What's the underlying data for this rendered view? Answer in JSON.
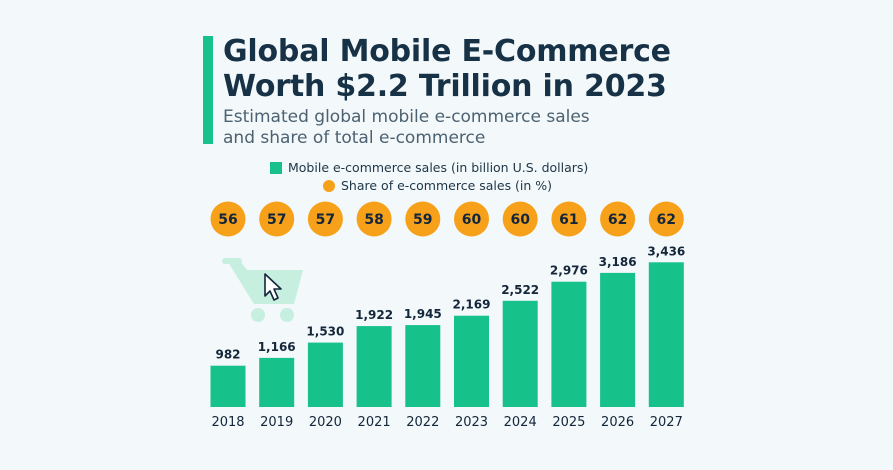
{
  "header": {
    "title_line_1": "Global Mobile E-Commerce",
    "title_line_2": "Worth $2.2 Trillion in 2023",
    "subtitle_line_1": "Estimated global mobile e-commerce sales",
    "subtitle_line_2": "and share of total e-commerce"
  },
  "legend": {
    "sales_label": "Mobile e-commerce sales (in billion U.S. dollars)",
    "share_label": "Share of e-commerce sales (in %)"
  },
  "colors": {
    "background": "#f3f8fa",
    "bar": "#16c18a",
    "share_circle": "#f7a11a",
    "cart_icon": "#c6efe0",
    "title": "#173146"
  },
  "decoration": {
    "icon": "shopping-cart-with-cursor-icon"
  },
  "chart_data": {
    "type": "bar",
    "categories": [
      "2018",
      "2019",
      "2020",
      "2021",
      "2022",
      "2023",
      "2024",
      "2025",
      "2026",
      "2027"
    ],
    "series": [
      {
        "name": "Mobile e-commerce sales (in billion U.S. dollars)",
        "values": [
          982,
          1166,
          1530,
          1922,
          1945,
          2169,
          2522,
          2976,
          3186,
          3436
        ],
        "labels": [
          "982",
          "1,166",
          "1,530",
          "1,922",
          "1,945",
          "2,169",
          "2,522",
          "2,976",
          "3,186",
          "3,436"
        ]
      },
      {
        "name": "Share of e-commerce sales (in %)",
        "values": [
          56,
          57,
          57,
          58,
          59,
          60,
          60,
          61,
          62,
          62
        ]
      }
    ],
    "title": "Global Mobile E-Commerce Worth $2.2 Trillion in 2023",
    "subtitle": "Estimated global mobile e-commerce sales and share of total e-commerce",
    "legend_position": "top",
    "grid": false
  }
}
